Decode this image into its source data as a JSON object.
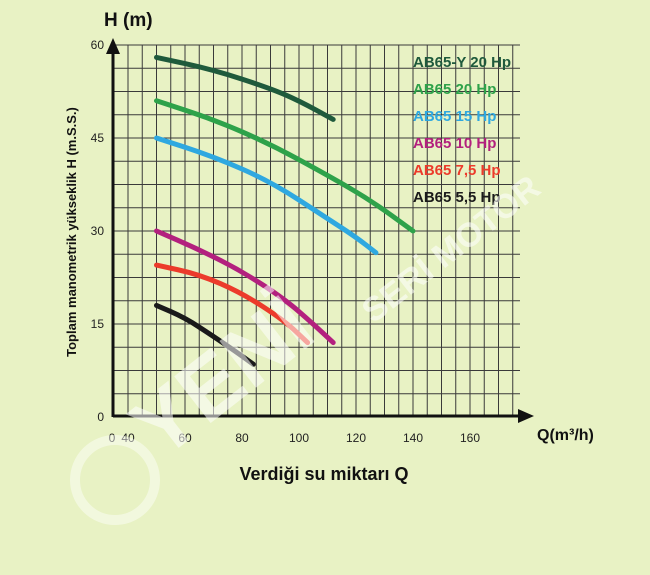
{
  "chart_data": {
    "type": "line",
    "xlabel": "Verdiği su miktarı Q",
    "x_unit_label": "Q(m³/h)",
    "ylabel": "Toplam manometrik yükseklik H (m.S.S.)",
    "y_unit_label": "H (m)",
    "x_tick_labels": [
      "0",
      "40",
      "60",
      "80",
      "100",
      "120",
      "140",
      "160"
    ],
    "y_ticks": [
      0,
      15,
      30,
      45,
      60
    ],
    "xlim": [
      35,
      175
    ],
    "ylim": [
      0,
      60
    ],
    "grid": true,
    "legend_position": "top-right",
    "series": [
      {
        "name": "AB65-Y 20 Hp",
        "color": "#1f5a3c",
        "points": [
          [
            50,
            58
          ],
          [
            70,
            56
          ],
          [
            90,
            53
          ],
          [
            100,
            51
          ],
          [
            112,
            48
          ]
        ]
      },
      {
        "name": "AB65 20 Hp",
        "color": "#2ea24a",
        "points": [
          [
            50,
            51
          ],
          [
            70,
            48
          ],
          [
            90,
            44
          ],
          [
            110,
            39
          ],
          [
            125,
            35
          ],
          [
            140,
            30
          ]
        ]
      },
      {
        "name": "AB65 15 Hp",
        "color": "#2fa8e0",
        "points": [
          [
            50,
            45
          ],
          [
            70,
            42
          ],
          [
            90,
            38
          ],
          [
            110,
            32
          ],
          [
            120,
            29
          ],
          [
            127,
            26.5
          ]
        ]
      },
      {
        "name": "AB65 10 Hp",
        "color": "#b3207e",
        "points": [
          [
            50,
            30
          ],
          [
            65,
            27
          ],
          [
            80,
            23.5
          ],
          [
            95,
            19
          ],
          [
            105,
            15
          ],
          [
            112,
            12
          ]
        ]
      },
      {
        "name": "AB65 7,5 Hp",
        "color": "#ec3b2b",
        "points": [
          [
            50,
            24.5
          ],
          [
            65,
            23
          ],
          [
            80,
            20
          ],
          [
            95,
            15.5
          ],
          [
            103,
            12
          ]
        ]
      },
      {
        "name": "AB65 5,5 Hp",
        "color": "#1a1a1a",
        "points": [
          [
            50,
            18
          ],
          [
            60,
            16
          ],
          [
            70,
            13
          ],
          [
            78,
            10.5
          ],
          [
            84,
            8.5
          ]
        ]
      }
    ]
  },
  "watermark": {
    "brand": "YENİ",
    "sub": "SERİ MOTOR"
  }
}
